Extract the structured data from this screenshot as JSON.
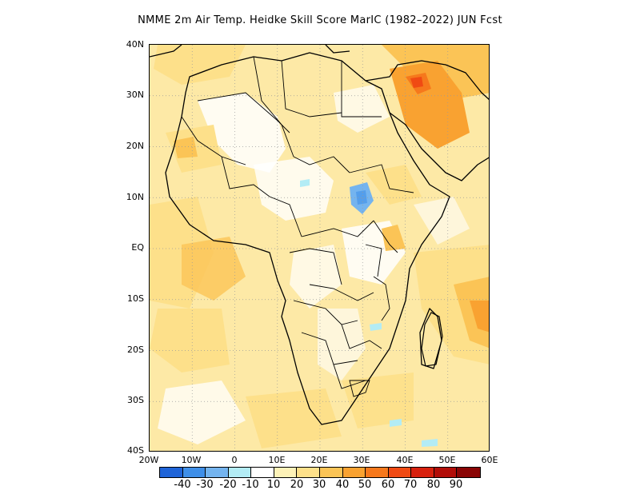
{
  "title": "NMME  2m Air Temp. Heidke Skill Score MarIC (1982–2022) JUN Fcst",
  "map": {
    "lat_labels": [
      "40N",
      "30N",
      "20N",
      "10N",
      "EQ",
      "10S",
      "20S",
      "30S",
      "40S"
    ],
    "lon_labels": [
      "20W",
      "10W",
      "0",
      "10E",
      "20E",
      "30E",
      "40E",
      "50E",
      "60E"
    ],
    "lat_range": [
      -40,
      40
    ],
    "lon_range": [
      -20,
      60
    ],
    "grid": "dotted",
    "background_color": "#fde9a6"
  },
  "colorbar": {
    "colors": [
      "#1f64d8",
      "#3f8fe8",
      "#74b4ef",
      "#b3ecf5",
      "#ffffff",
      "#fdf2b8",
      "#fde08a",
      "#fbc456",
      "#f9a231",
      "#f6781c",
      "#f04a13",
      "#d8210e",
      "#b20d08",
      "#8a0505"
    ],
    "labels": [
      "-40",
      "-30",
      "-20",
      "-10",
      "10",
      "20",
      "30",
      "40",
      "50",
      "60",
      "70",
      "80",
      "90"
    ]
  }
}
